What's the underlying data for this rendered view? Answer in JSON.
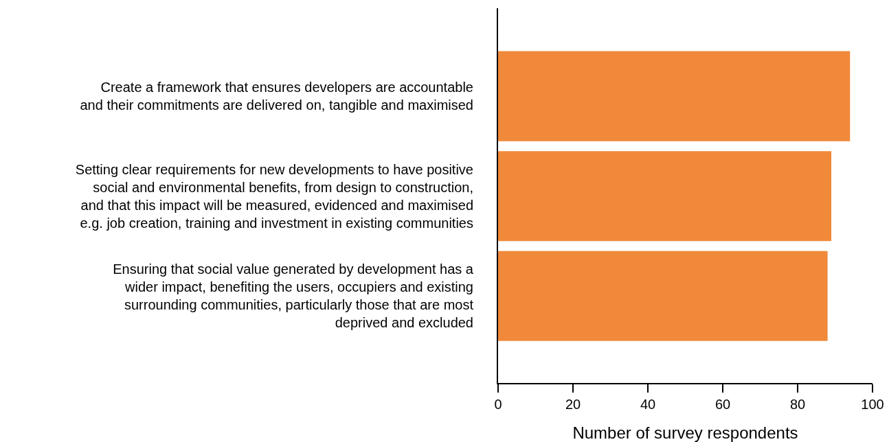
{
  "chart_data": {
    "type": "bar",
    "orientation": "horizontal",
    "xlabel": "Number of survey respondents",
    "categories": [
      "Create a framework that ensures developers are accountable\nand their commitments are delivered on, tangible and maximised",
      "Setting clear requirements for new developments to have positive\nsocial and environmental benefits, from design to construction,\nand that this impact will be measured, evidenced and maximised\ne.g. job creation, training and investment in existing communities",
      "Ensuring that social value generated by development has a\nwider impact, benefiting the users, occupiers and existing\nsurrounding communities, particularly those that are most\ndeprived and excluded"
    ],
    "values": [
      94,
      89,
      88
    ],
    "color": "#f0893a",
    "xlim": [
      0,
      100
    ],
    "xticks": [
      0,
      20,
      40,
      60,
      80,
      100
    ],
    "grid": false,
    "legend": false
  }
}
